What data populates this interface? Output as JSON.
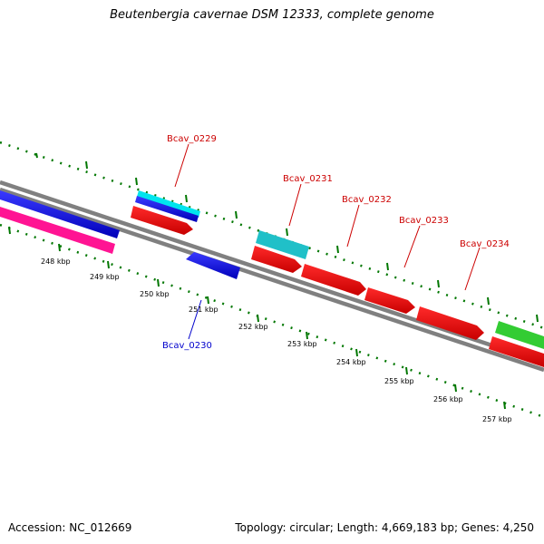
{
  "title": "Beutenbergia cavernae DSM 12333, complete genome",
  "footer": {
    "accession": "Accession: NC_012669",
    "topology": "Topology: circular; Length: 4,669,183 bp; Genes: 4,250"
  },
  "scale_labels": [
    "248 kbp",
    "249 kbp",
    "250 kbp",
    "251 kbp",
    "252 kbp",
    "253 kbp",
    "254 kbp",
    "255 kbp",
    "256 kbp",
    "257 kbp"
  ],
  "gene_labels": {
    "bcav_0229": "Bcav_0229",
    "bcav_0230": "Bcav_0230",
    "bcav_0231": "Bcav_0231",
    "bcav_0232": "Bcav_0232",
    "bcav_0233": "Bcav_0233",
    "bcav_0234": "Bcav_0234"
  },
  "colors": {
    "backbone": "#808080",
    "tick": "#007700",
    "forward_gene": "#ee0000",
    "reverse_gene": "#0000ee",
    "rna_cyan": "#00e5ee",
    "teal": "#20c0c8",
    "magenta": "#ff1493",
    "green": "#33cc33",
    "label_red": "#cc0000",
    "label_blue": "#0000cc"
  }
}
